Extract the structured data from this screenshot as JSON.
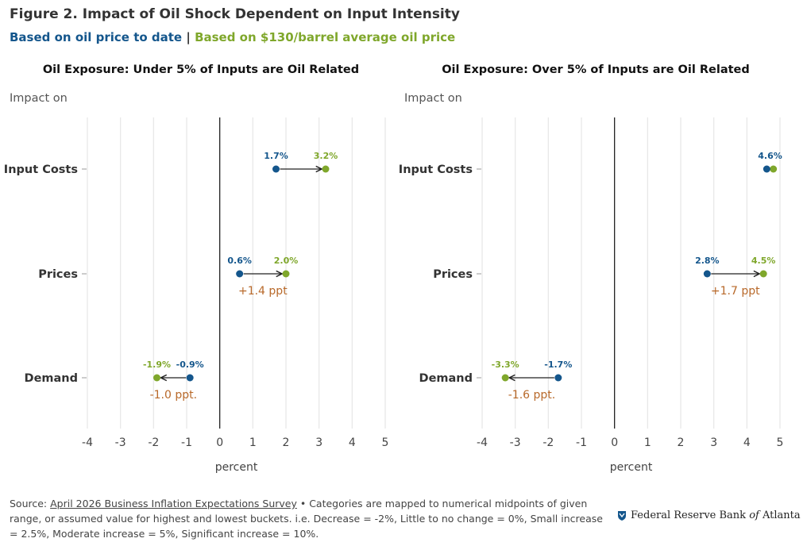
{
  "title": "Figure 2. Impact of Oil Shock Dependent on Input Intensity",
  "subtitle": {
    "series_a": "Based on oil price to date",
    "separator": "|",
    "series_b": "Based on $130/barrel average oil price"
  },
  "colors": {
    "series_a": "#14568c",
    "series_b": "#7fa72b",
    "annotation": "#b8692a",
    "grid": "#e8e8e8",
    "zero_line": "#222222",
    "arrow": "#222222"
  },
  "chart_data": [
    {
      "type": "dumbbell",
      "title": "Oil Exposure: Under 5% of Inputs are Oil Related",
      "ylabel": "Impact on",
      "xlabel": "percent",
      "xlim": [
        -4,
        5
      ],
      "xticks": [
        "-4",
        "-3",
        "-2",
        "-1",
        "0",
        "1",
        "2",
        "3",
        "4",
        "5"
      ],
      "grid": "vertical",
      "categories": [
        "Input Costs",
        "Prices",
        "Demand"
      ],
      "series": [
        {
          "name": "Based on oil price to date",
          "values": [
            1.7,
            0.6,
            -0.9
          ],
          "labels": [
            "1.7%",
            "0.6%",
            "-0.9%"
          ]
        },
        {
          "name": "Based on $130/barrel average oil price",
          "values": [
            3.2,
            2.0,
            -1.9
          ],
          "labels": [
            "3.2%",
            "2.0%",
            "-1.9%"
          ]
        }
      ],
      "annotations": [
        "",
        "+1.4 ppt",
        "-1.0 ppt."
      ]
    },
    {
      "type": "dumbbell",
      "title": "Oil Exposure: Over 5% of Inputs are Oil Related",
      "ylabel": "Impact on",
      "xlabel": "percent",
      "xlim": [
        -4,
        5
      ],
      "xticks": [
        "-4",
        "-3",
        "-2",
        "-1",
        "0",
        "1",
        "2",
        "3",
        "4",
        "5"
      ],
      "grid": "vertical",
      "categories": [
        "Input Costs",
        "Prices",
        "Demand"
      ],
      "series": [
        {
          "name": "Based on oil price to date",
          "values": [
            4.6,
            2.8,
            -1.7
          ],
          "labels": [
            "4.6%",
            "2.8%",
            "-1.7%"
          ]
        },
        {
          "name": "Based on $130/barrel average oil price",
          "values": [
            4.8,
            4.5,
            -3.3
          ],
          "labels": [
            "",
            "4.5%",
            "-3.3%"
          ]
        }
      ],
      "annotations": [
        "",
        "+1.7 ppt",
        "-1.6 ppt."
      ]
    }
  ],
  "footer": {
    "source_prefix": "Source: ",
    "source_link": "April 2026 Business Inflation Expectations Survey",
    "note": " • Categories are mapped to numerical midpoints of given range, or assumed value for highest and lowest buckets. i.e. Decrease = -2%, Little to no change = 0%, Small increase = 2.5%, Moderate increase = 5%, Significant increase = 10%."
  },
  "logo": {
    "text_before": "Federal Reserve Bank ",
    "text_italic": "of",
    "text_after": " Atlanta",
    "icon": "fed-eagle-shield-icon"
  }
}
